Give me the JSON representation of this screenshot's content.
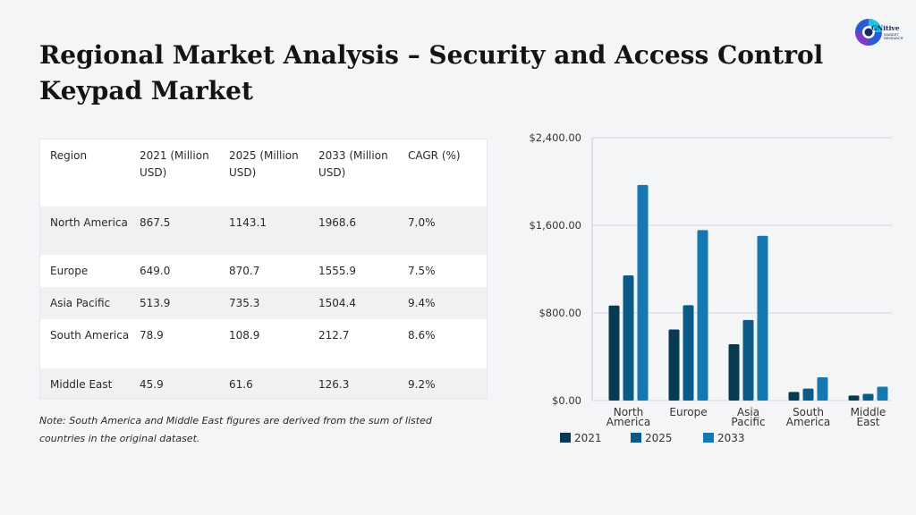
{
  "title": "Regional Market Analysis – Security and Access Control Keypad Market",
  "logo": {
    "word": "GNitive",
    "sub_line1": "MARKET",
    "sub_line2": "RESEARCH"
  },
  "table": {
    "headers": [
      "Region",
      "2021 (Million USD)",
      "2025 (Million USD)",
      "2033 (Million USD)",
      "CAGR (%)"
    ],
    "rows": [
      [
        "North America",
        "867.5",
        "1143.1",
        "1968.6",
        "7.0%"
      ],
      [
        "Europe",
        "649.0",
        "870.7",
        "1555.9",
        "7.5%"
      ],
      [
        "Asia Pacific",
        "513.9",
        "735.3",
        "1504.4",
        "9.4%"
      ],
      [
        "South America",
        "78.9",
        "108.9",
        "212.7",
        "8.6%"
      ],
      [
        "Middle East",
        "45.9",
        "61.6",
        "126.3",
        "9.2%"
      ]
    ]
  },
  "note": "Note: South America and Middle East figures are derived from the sum of listed countries in the original dataset.",
  "chart_data": {
    "type": "bar",
    "categories": [
      [
        "North",
        "America"
      ],
      [
        "Europe"
      ],
      [
        "Asia",
        "Pacific"
      ],
      [
        "South",
        "America"
      ],
      [
        "Middle",
        "East"
      ]
    ],
    "series": [
      {
        "name": "2021",
        "values": [
          867.5,
          649.0,
          513.9,
          78.9,
          45.9
        ],
        "color": "#083a52"
      },
      {
        "name": "2025",
        "values": [
          1143.1,
          870.7,
          735.3,
          108.9,
          61.6
        ],
        "color": "#0c5a86"
      },
      {
        "name": "2033",
        "values": [
          1968.6,
          1555.9,
          1504.4,
          212.7,
          126.3
        ],
        "color": "#1578b0"
      }
    ],
    "yticks": [
      "$0.00",
      "$800.00",
      "$1,600.00",
      "$2,400.00"
    ],
    "ytick_values": [
      0,
      800,
      1600,
      2400
    ],
    "ylim": [
      0,
      2400
    ],
    "grid": true,
    "legend": "bottom"
  }
}
